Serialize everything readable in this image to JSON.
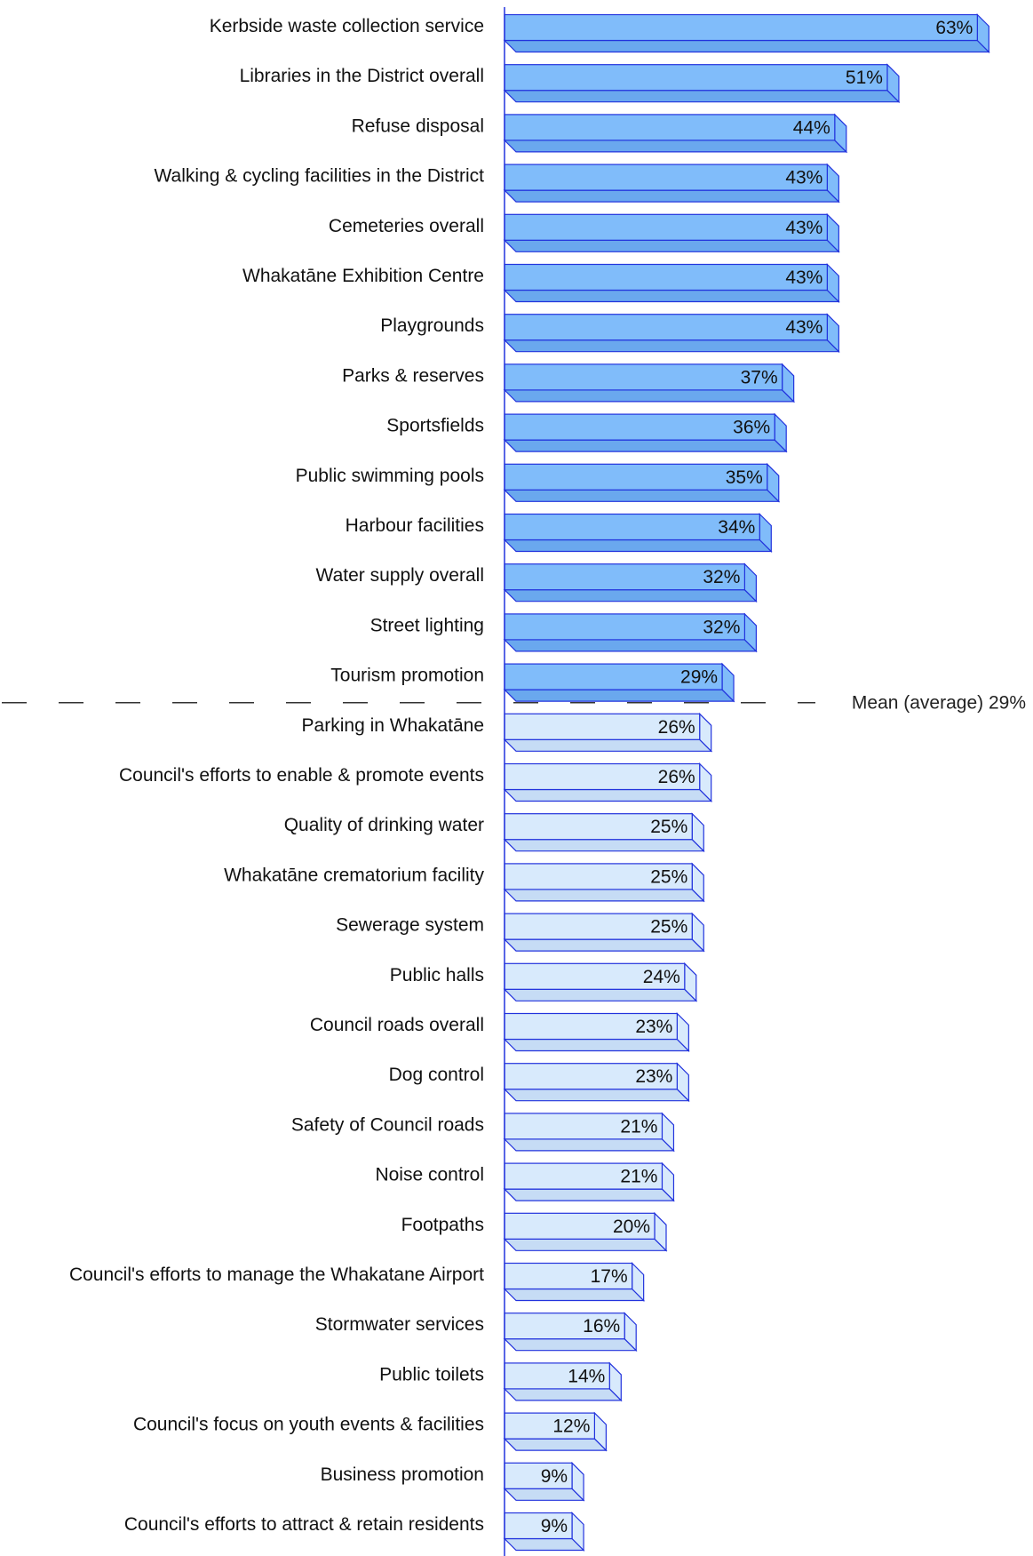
{
  "chart_data": {
    "type": "bar",
    "orientation": "horizontal",
    "categories": [
      "Kerbside waste collection service",
      "Libraries in the District overall",
      "Refuse disposal",
      "Walking & cycling facilities in the District",
      "Cemeteries overall",
      "Whakatāne Exhibition Centre",
      "Playgrounds",
      "Parks & reserves",
      "Sportsfields",
      "Public swimming pools",
      "Harbour facilities",
      "Water supply overall",
      "Street lighting",
      "Tourism promotion",
      "Parking in Whakatāne",
      "Council's efforts to enable & promote events",
      "Quality of drinking water",
      "Whakatāne crematorium facility",
      "Sewerage system",
      "Public halls",
      "Council roads overall",
      "Dog control",
      "Safety of Council roads",
      "Noise control",
      "Footpaths",
      "Council's efforts to manage the Whakatane Airport",
      "Stormwater services",
      "Public toilets",
      "Council's focus on youth events & facilities",
      "Business promotion",
      "Council's efforts to attract & retain residents"
    ],
    "values": [
      63,
      51,
      44,
      43,
      43,
      43,
      43,
      37,
      36,
      35,
      34,
      32,
      32,
      29,
      26,
      26,
      25,
      25,
      25,
      24,
      23,
      23,
      21,
      21,
      20,
      17,
      16,
      14,
      12,
      9,
      9
    ],
    "value_labels": [
      "63%",
      "51%",
      "44%",
      "43%",
      "43%",
      "43%",
      "43%",
      "37%",
      "36%",
      "35%",
      "34%",
      "32%",
      "32%",
      "29%",
      "26%",
      "26%",
      "25%",
      "25%",
      "25%",
      "24%",
      "23%",
      "23%",
      "21%",
      "21%",
      "20%",
      "17%",
      "16%",
      "14%",
      "12%",
      "9%",
      "9%"
    ],
    "unit": "%",
    "xlim": [
      0,
      65
    ],
    "mean": {
      "value": 29,
      "label": "Mean (average) 29%"
    },
    "above_mean_count": 14,
    "colors": {
      "above_mean_fill": "#80bcfa",
      "above_mean_shade": "#6aa8ee",
      "below_mean_fill": "#d8eafc",
      "below_mean_shade": "#c6dcf5",
      "bar_outline": "#2233dd",
      "mean_line": "#333333"
    },
    "grid": false,
    "legend": "none"
  }
}
